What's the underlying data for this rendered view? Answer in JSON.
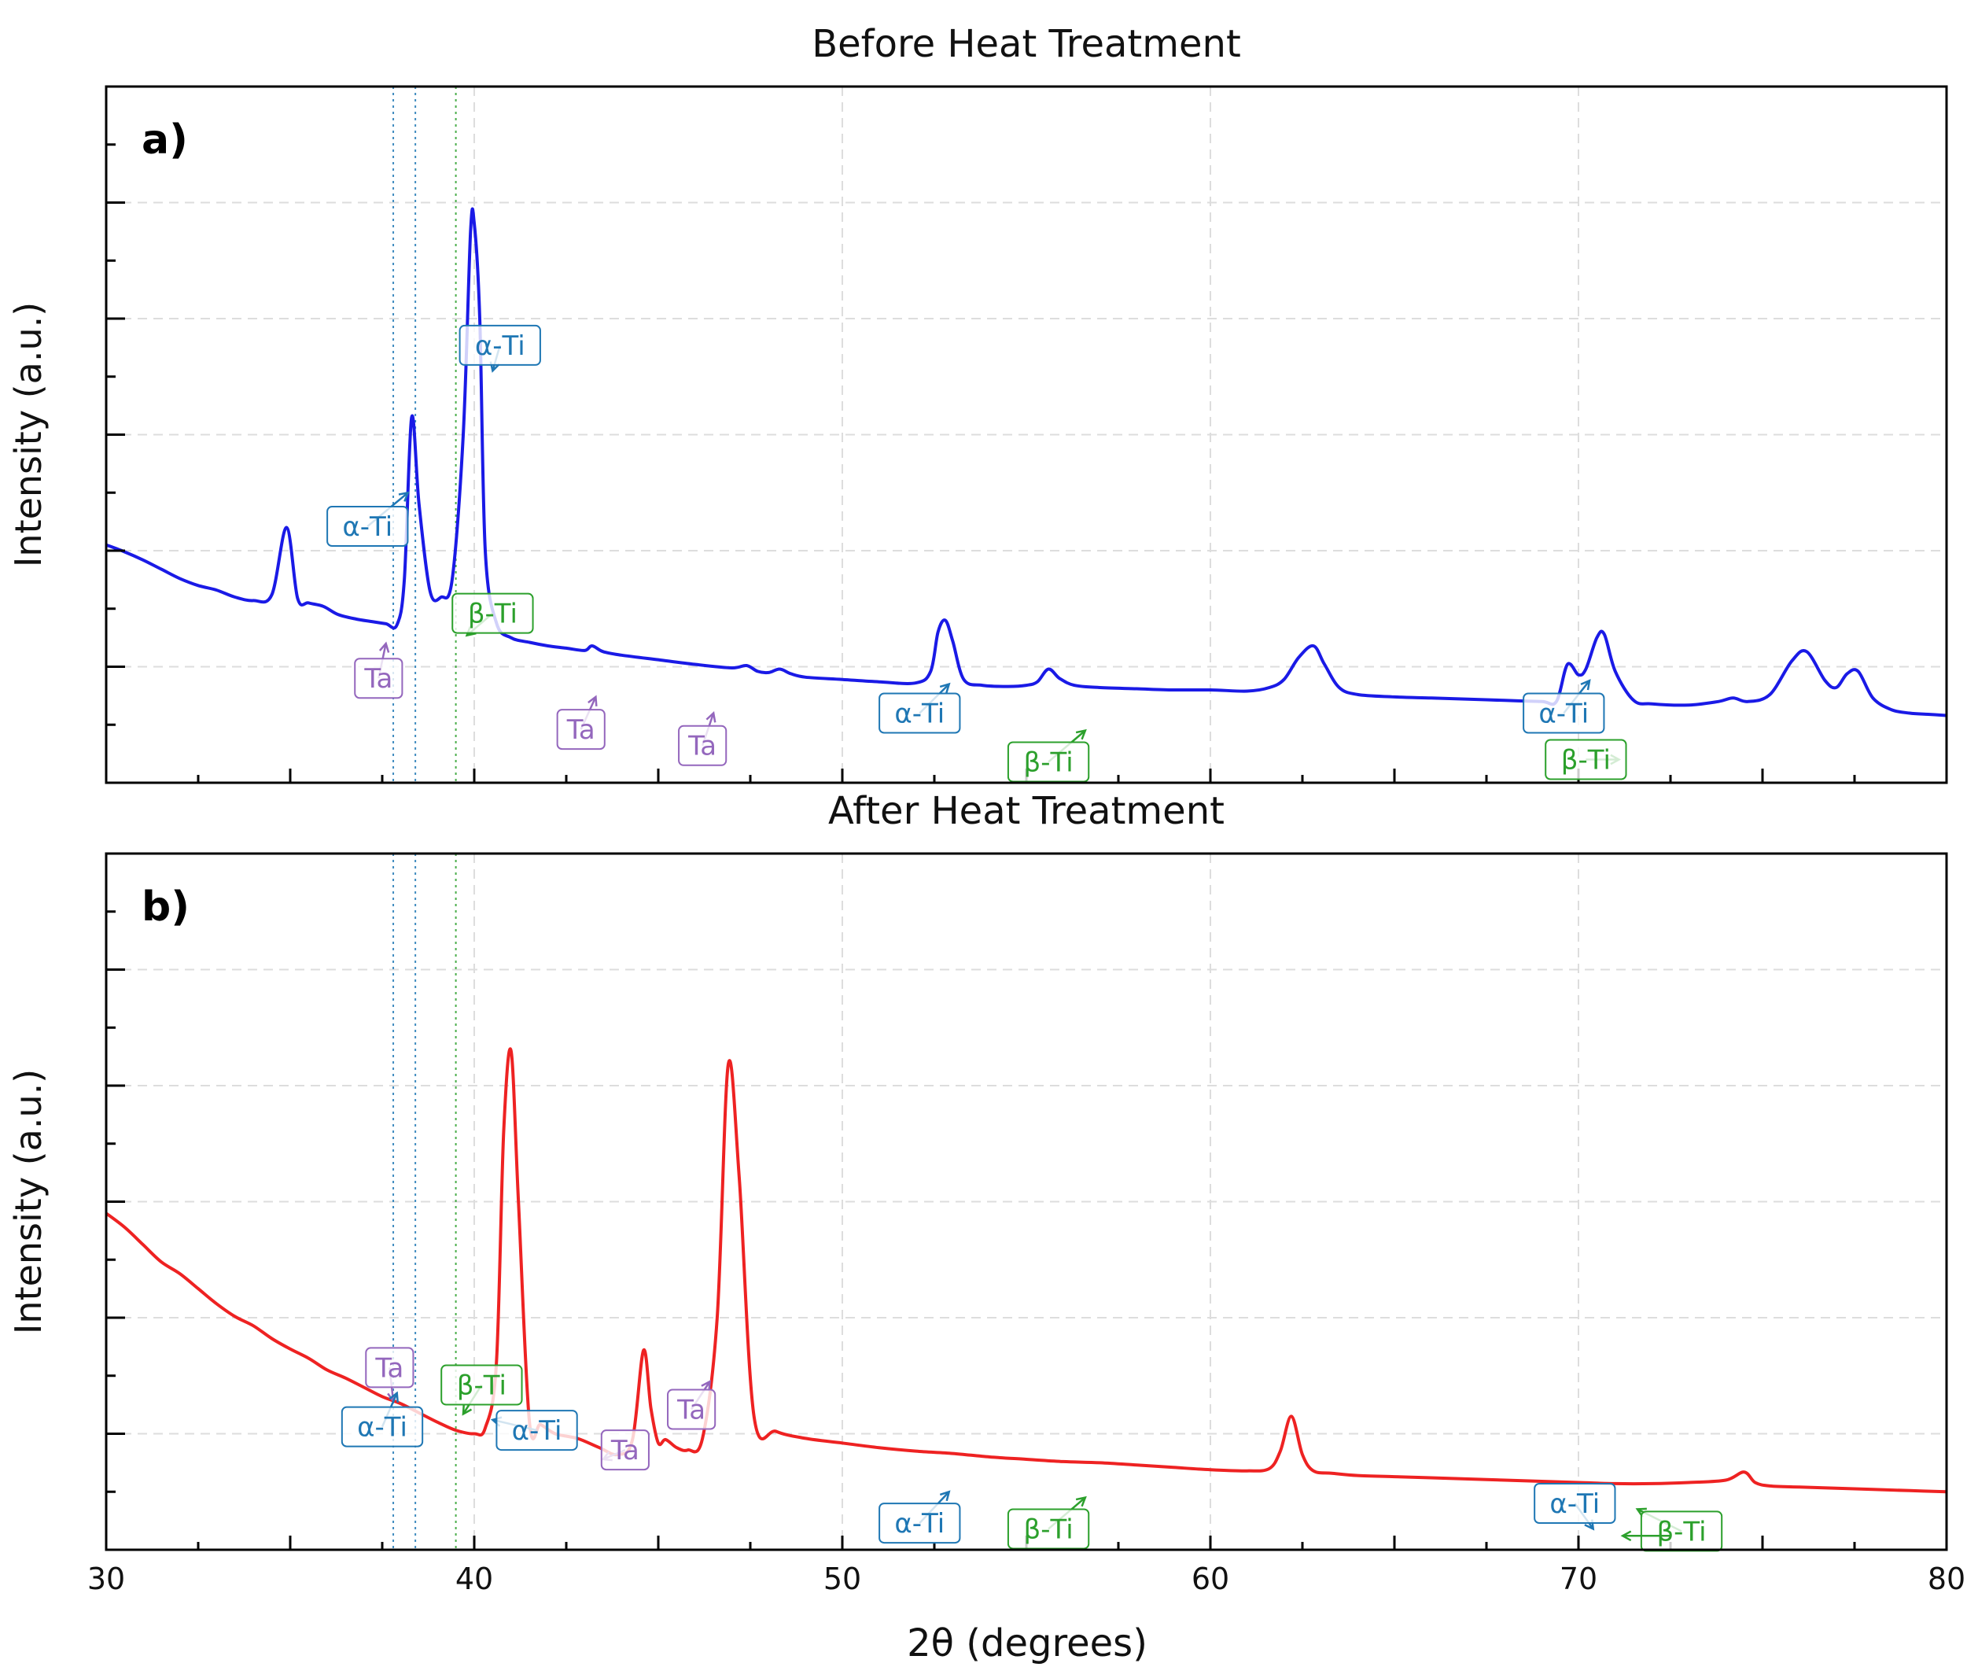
{
  "figure": {
    "xlabel": "2θ (degrees)"
  },
  "chart_data": [
    {
      "type": "line",
      "panel_label": "a)",
      "title": "Before Heat Treatment",
      "xlabel": "",
      "ylabel": "Intensity (a.u.)",
      "xlim": [
        30,
        80
      ],
      "ylim": [
        0,
        6
      ],
      "x_ticks": [
        40,
        50,
        60,
        70
      ],
      "tick_labels_visible": false,
      "y_tick_labels_visible": false,
      "grid": true,
      "color": "#1a1ae6",
      "series": [
        {
          "x": [
            30,
            30.5,
            31,
            31.5,
            32,
            32.5,
            33,
            33.5,
            34,
            34.5,
            34.9,
            35.2,
            35.5,
            35.9,
            36.3,
            36.8,
            37.2,
            37.6,
            37.9,
            38.1,
            38.3,
            38.5,
            38.8,
            39.1,
            39.4,
            39.7,
            39.9,
            40.0,
            40.15,
            40.3,
            40.6,
            41.0,
            41.5,
            42,
            42.5,
            43,
            43.2,
            43.5,
            44,
            45,
            46,
            47,
            47.4,
            47.7,
            48,
            48.3,
            48.6,
            49,
            50,
            51,
            52,
            52.4,
            52.6,
            52.8,
            53.0,
            53.3,
            53.8,
            54.5,
            55.0,
            55.3,
            55.6,
            55.9,
            56.3,
            57,
            58,
            59,
            60,
            61,
            61.6,
            62.0,
            62.4,
            62.8,
            63.1,
            63.5,
            64,
            65,
            66,
            67,
            68,
            69,
            69.4,
            69.7,
            70.0,
            70.2,
            70.5,
            70.7,
            71.0,
            71.5,
            72,
            73,
            73.8,
            74.2,
            74.6,
            75.2,
            75.8,
            76.2,
            76.7,
            77.0,
            77.3,
            77.6,
            78.0,
            78.5,
            79,
            79.5,
            80
          ],
          "y": [
            2.05,
            1.99,
            1.92,
            1.84,
            1.76,
            1.7,
            1.66,
            1.6,
            1.57,
            1.62,
            2.2,
            1.59,
            1.55,
            1.52,
            1.45,
            1.41,
            1.39,
            1.37,
            1.36,
            1.75,
            3.15,
            2.4,
            1.65,
            1.6,
            1.75,
            3.0,
            4.75,
            4.82,
            4.0,
            2.0,
            1.38,
            1.25,
            1.21,
            1.18,
            1.16,
            1.14,
            1.18,
            1.13,
            1.1,
            1.06,
            1.02,
            0.99,
            1.01,
            0.96,
            0.95,
            0.98,
            0.94,
            0.91,
            0.89,
            0.87,
            0.86,
            0.96,
            1.3,
            1.4,
            1.22,
            0.89,
            0.84,
            0.83,
            0.84,
            0.87,
            0.98,
            0.9,
            0.84,
            0.82,
            0.81,
            0.8,
            0.8,
            0.79,
            0.82,
            0.89,
            1.08,
            1.18,
            1.02,
            0.82,
            0.76,
            0.74,
            0.73,
            0.72,
            0.71,
            0.7,
            0.7,
            1.02,
            0.93,
            0.98,
            1.25,
            1.28,
            0.96,
            0.71,
            0.68,
            0.67,
            0.7,
            0.73,
            0.7,
            0.76,
            1.05,
            1.13,
            0.88,
            0.82,
            0.94,
            0.96,
            0.73,
            0.63,
            0.6,
            0.59,
            0.58
          ]
        }
      ],
      "reference_lines": [
        {
          "x": 37.8,
          "color": "#1f77b4"
        },
        {
          "x": 38.4,
          "color": "#1f77b4"
        },
        {
          "x": 39.5,
          "color": "#2ca02c"
        }
      ],
      "annotations": [
        {
          "text": "α-Ti",
          "phase": "alpha",
          "x": 40.7,
          "y": 3.77,
          "tx": 40.5,
          "ty": 3.55
        },
        {
          "text": "α-Ti",
          "phase": "alpha",
          "x": 37.1,
          "y": 2.21,
          "tx": 38.2,
          "ty": 2.5
        },
        {
          "text": "β-Ti",
          "phase": "beta",
          "x": 40.5,
          "y": 1.46,
          "tx": 39.8,
          "ty": 1.27
        },
        {
          "text": "Ta",
          "phase": "ta",
          "x": 37.4,
          "y": 0.9,
          "tx": 37.6,
          "ty": 1.2
        },
        {
          "text": "Ta",
          "phase": "ta",
          "x": 42.9,
          "y": 0.46,
          "tx": 43.3,
          "ty": 0.74
        },
        {
          "text": "Ta",
          "phase": "ta",
          "x": 46.2,
          "y": 0.32,
          "tx": 46.5,
          "ty": 0.6
        },
        {
          "text": "α-Ti",
          "phase": "alpha",
          "x": 52.1,
          "y": 0.6,
          "tx": 52.9,
          "ty": 0.85
        },
        {
          "text": "β-Ti",
          "phase": "beta",
          "x": 55.6,
          "y": 0.18,
          "tx": 56.6,
          "ty": 0.45
        },
        {
          "text": "α-Ti",
          "phase": "alpha",
          "x": 69.6,
          "y": 0.6,
          "tx": 70.3,
          "ty": 0.88
        },
        {
          "text": "β-Ti",
          "phase": "beta",
          "x": 70.2,
          "y": 0.2,
          "tx": 71.1,
          "ty": 0.2
        }
      ]
    },
    {
      "type": "line",
      "panel_label": "b)",
      "title": "After Heat Treatment",
      "xlabel": "2θ (degrees)",
      "ylabel": "Intensity (a.u.)",
      "xlim": [
        30,
        80
      ],
      "ylim": [
        0,
        6
      ],
      "x_ticks": [
        30,
        40,
        50,
        60,
        70,
        80
      ],
      "x_tick_labels": [
        "30",
        "40",
        "50",
        "60",
        "70",
        "80"
      ],
      "y_tick_labels_visible": false,
      "grid": true,
      "color": "#ee2222",
      "series": [
        {
          "x": [
            30,
            30.5,
            31,
            31.5,
            32,
            32.5,
            33,
            33.5,
            34,
            34.5,
            35,
            35.5,
            36,
            36.5,
            37,
            37.5,
            38,
            38.5,
            39,
            39.5,
            40,
            40.3,
            40.6,
            40.8,
            41.0,
            41.2,
            41.5,
            41.8,
            42.2,
            42.8,
            43.4,
            43.9,
            44.3,
            44.6,
            44.8,
            45.0,
            45.2,
            45.5,
            45.8,
            46.2,
            46.6,
            46.9,
            47.2,
            47.6,
            48.2,
            49,
            50,
            51,
            52,
            53,
            54,
            55,
            56,
            57,
            58,
            59,
            60,
            61,
            61.6,
            61.9,
            62.2,
            62.5,
            62.8,
            63.3,
            64,
            65,
            66,
            67,
            68,
            69,
            70,
            71,
            72,
            73,
            74,
            74.5,
            74.8,
            75.2,
            76,
            77,
            78,
            79,
            80
          ],
          "y": [
            2.9,
            2.78,
            2.63,
            2.48,
            2.38,
            2.25,
            2.12,
            2.01,
            1.93,
            1.82,
            1.73,
            1.65,
            1.55,
            1.48,
            1.4,
            1.32,
            1.26,
            1.18,
            1.1,
            1.03,
            1.0,
            1.05,
            1.6,
            3.6,
            4.3,
            3.0,
            1.1,
            1.08,
            1.0,
            0.96,
            0.88,
            0.82,
            0.95,
            1.72,
            1.22,
            0.92,
            0.95,
            0.88,
            0.86,
            0.96,
            2.0,
            4.18,
            3.2,
            1.15,
            1.02,
            0.96,
            0.92,
            0.88,
            0.85,
            0.83,
            0.8,
            0.78,
            0.76,
            0.75,
            0.73,
            0.71,
            0.69,
            0.68,
            0.7,
            0.85,
            1.15,
            0.82,
            0.68,
            0.66,
            0.64,
            0.63,
            0.62,
            0.61,
            0.6,
            0.59,
            0.58,
            0.57,
            0.57,
            0.58,
            0.6,
            0.67,
            0.58,
            0.55,
            0.54,
            0.53,
            0.52,
            0.51,
            0.5
          ]
        }
      ],
      "reference_lines": [
        {
          "x": 37.8,
          "color": "#1f77b4"
        },
        {
          "x": 38.4,
          "color": "#1f77b4"
        },
        {
          "x": 39.5,
          "color": "#2ca02c"
        }
      ],
      "annotations": [
        {
          "text": "Ta",
          "phase": "ta",
          "x": 37.7,
          "y": 1.57,
          "tx": 37.8,
          "ty": 1.28
        },
        {
          "text": "β-Ti",
          "phase": "beta",
          "x": 40.2,
          "y": 1.42,
          "tx": 39.7,
          "ty": 1.17
        },
        {
          "text": "α-Ti",
          "phase": "alpha",
          "x": 37.5,
          "y": 1.06,
          "tx": 37.9,
          "ty": 1.35
        },
        {
          "text": "α-Ti",
          "phase": "alpha",
          "x": 41.7,
          "y": 1.03,
          "tx": 40.5,
          "ty": 1.12
        },
        {
          "text": "Ta",
          "phase": "ta",
          "x": 44.1,
          "y": 0.86,
          "tx": 43.5,
          "ty": 0.78
        },
        {
          "text": "Ta",
          "phase": "ta",
          "x": 45.9,
          "y": 1.21,
          "tx": 46.4,
          "ty": 1.45
        },
        {
          "text": "α-Ti",
          "phase": "alpha",
          "x": 52.1,
          "y": 0.23,
          "tx": 52.9,
          "ty": 0.5
        },
        {
          "text": "β-Ti",
          "phase": "beta",
          "x": 55.6,
          "y": 0.18,
          "tx": 56.6,
          "ty": 0.45
        },
        {
          "text": "α-Ti",
          "phase": "alpha",
          "x": 69.9,
          "y": 0.4,
          "tx": 70.4,
          "ty": 0.18
        },
        {
          "text": "β-Ti",
          "phase": "beta",
          "x": 72.8,
          "y": 0.16,
          "tx": 71.6,
          "ty": 0.35
        },
        {
          "text": "",
          "phase": "beta",
          "x": 72.5,
          "y": 0.12,
          "tx": 71.2,
          "ty": 0.12
        }
      ]
    }
  ]
}
